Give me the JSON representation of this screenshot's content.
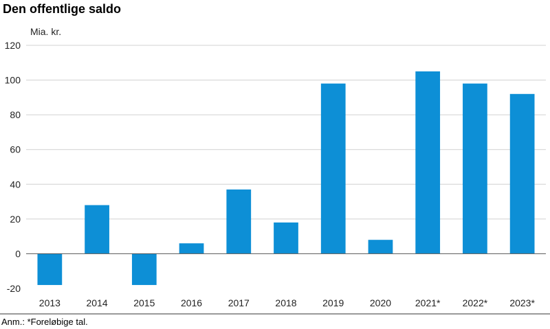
{
  "chart_data": {
    "type": "bar",
    "title": "Den offentlige saldo",
    "ylabel": "Mia. kr.",
    "xlabel": "",
    "categories": [
      "2013",
      "2014",
      "2015",
      "2016",
      "2017",
      "2018",
      "2019",
      "2020",
      "2021*",
      "2022*",
      "2023*"
    ],
    "values": [
      -18,
      28,
      -18,
      6,
      37,
      18,
      98,
      8,
      105,
      98,
      92
    ],
    "ylim": [
      -20,
      120
    ],
    "yticks": [
      -20,
      0,
      20,
      40,
      60,
      80,
      100,
      120
    ],
    "grid": true,
    "bar_color": "#0d8fd6",
    "footnote": "Anm.: *Foreløbige tal."
  }
}
